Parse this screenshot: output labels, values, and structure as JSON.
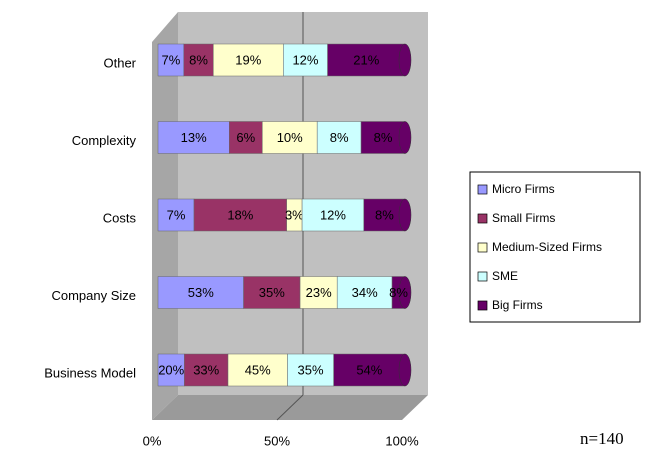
{
  "chart_data": {
    "type": "bar",
    "orientation": "horizontal",
    "stacking": "percent",
    "categories": [
      "Other",
      "Complexity",
      "Costs",
      "Company Size",
      "Business Model"
    ],
    "series": [
      {
        "name": "Micro Firms",
        "color": "#9999ff",
        "values": [
          7,
          13,
          7,
          53,
          20
        ],
        "value_labels": [
          "7%",
          "13%",
          "7%",
          "53%",
          "20%"
        ]
      },
      {
        "name": "Small Firms",
        "color": "#993366",
        "values": [
          8,
          6,
          18,
          35,
          33
        ],
        "value_labels": [
          "8%",
          "6%",
          "18%",
          "35%",
          "33%"
        ]
      },
      {
        "name": "Medium-Sized Firms",
        "color": "#ffffcc",
        "values": [
          19,
          10,
          3,
          23,
          45
        ],
        "value_labels": [
          "19%",
          "10%",
          "3%",
          "23%",
          "45%"
        ]
      },
      {
        "name": "SME",
        "color": "#ccffff",
        "values": [
          12,
          8,
          12,
          34,
          35
        ],
        "value_labels": [
          "12%",
          "8%",
          "12%",
          "34%",
          "35%"
        ]
      },
      {
        "name": "Big Firms",
        "color": "#660066",
        "values": [
          21,
          8,
          8,
          8,
          54
        ],
        "value_labels": [
          "21%",
          "8%",
          "8%",
          "8%",
          "54%"
        ]
      }
    ],
    "xlim": [
      0,
      100
    ],
    "xticks": [
      {
        "value": 0,
        "label": "0%"
      },
      {
        "value": 50,
        "label": "50%"
      },
      {
        "value": 100,
        "label": "100%"
      }
    ],
    "grid": true,
    "legend": "right",
    "annotation": "n=140"
  }
}
